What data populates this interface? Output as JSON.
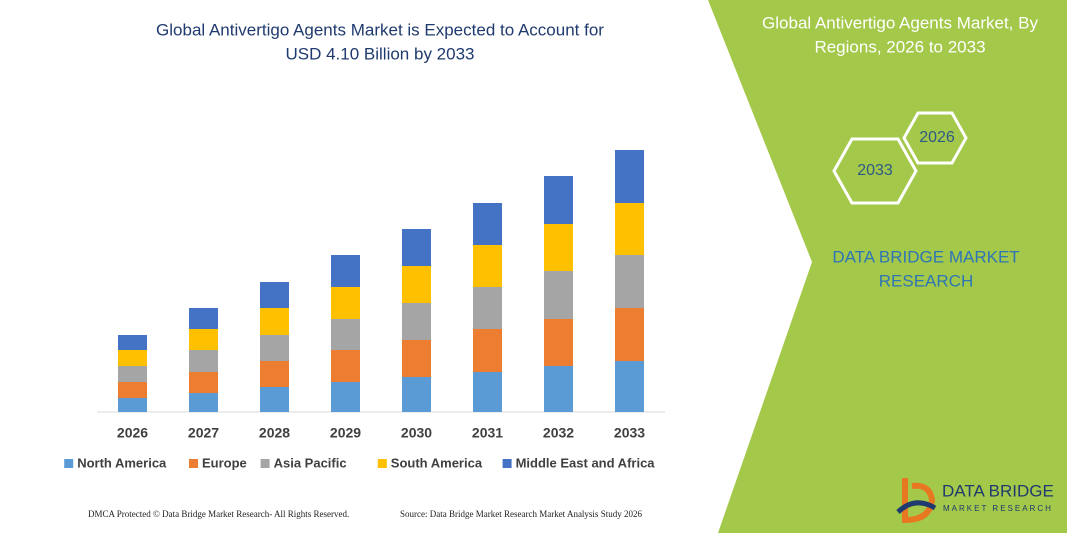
{
  "chart_data": {
    "type": "bar",
    "stacked": true,
    "title": [
      "Global Antivertigo Agents Market is Expected to Account for",
      "USD 4.10 Billion by 2033"
    ],
    "categories": [
      "2026",
      "2027",
      "2028",
      "2029",
      "2030",
      "2031",
      "2032",
      "2033"
    ],
    "series": [
      {
        "name": "North America",
        "color": "#5b9bd5",
        "values": [
          14,
          19,
          25,
          30,
          35,
          40,
          46,
          51
        ]
      },
      {
        "name": "Europe",
        "color": "#ed7d31",
        "values": [
          16,
          21,
          26,
          32,
          37,
          43,
          47,
          53
        ]
      },
      {
        "name": "Asia Pacific",
        "color": "#a5a5a5",
        "values": [
          16,
          22,
          26,
          31,
          37,
          42,
          48,
          53
        ]
      },
      {
        "name": "South America",
        "color": "#ffc000",
        "values": [
          16,
          21,
          27,
          32,
          37,
          42,
          47,
          52
        ]
      },
      {
        "name": "Middle East and Africa",
        "color": "#4472c4",
        "values": [
          15,
          21,
          26,
          32,
          37,
          42,
          48,
          53
        ]
      }
    ],
    "legend": "bottom"
  },
  "panel": {
    "title": [
      "Global Antivertigo Agents Market, By",
      "Regions, 2026 to 2033"
    ],
    "hexagons": [
      "2026",
      "2033"
    ],
    "brand": [
      "DATA BRIDGE MARKET",
      "RESEARCH"
    ]
  },
  "footer": {
    "left": "DMCA Protected © Data Bridge Market Research-  All Rights Reserved.",
    "right": "Source: Data Bridge Market Research  Market Analysis Study 2026"
  },
  "logo": {
    "name": "DATA BRIDGE",
    "tagline": "MARKET RESEARCH"
  }
}
